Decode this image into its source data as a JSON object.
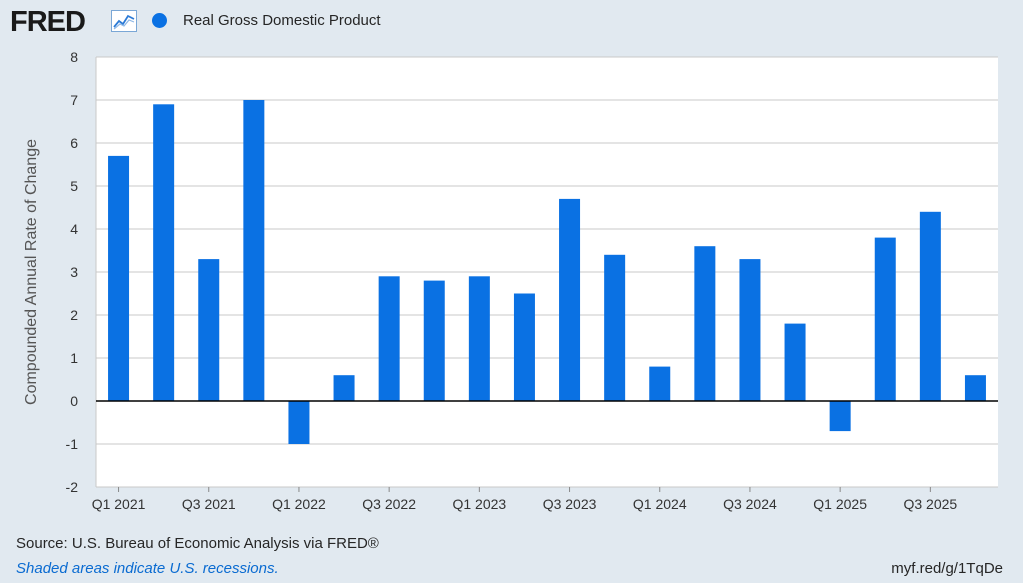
{
  "header": {
    "logo_text": "FRED",
    "logo_icon": "line-chart-icon",
    "legend_label": "Real Gross Domestic Product"
  },
  "colors": {
    "bar": "#0a71e3",
    "plot_bg": "#ffffff",
    "page_bg": "#e1e9f0",
    "grid": "#c9c9c9",
    "zero_line": "#000000"
  },
  "footer": {
    "source": "Source: U.S. Bureau of Economic Analysis via FRED®",
    "note": "Shaded areas indicate U.S. recessions.",
    "shortlink": "myf.red/g/1TqDe"
  },
  "chart_data": {
    "type": "bar",
    "ylabel": "Compounded Annual Rate of Change",
    "ylim": [
      -2,
      8
    ],
    "yticks": [
      -2,
      -1,
      0,
      1,
      2,
      3,
      4,
      5,
      6,
      7,
      8
    ],
    "grid": true,
    "categories": [
      "Q1 2021",
      "Q2 2021",
      "Q3 2021",
      "Q4 2021",
      "Q1 2022",
      "Q2 2022",
      "Q3 2022",
      "Q4 2022",
      "Q1 2023",
      "Q2 2023",
      "Q3 2023",
      "Q4 2023",
      "Q1 2024",
      "Q2 2024",
      "Q3 2024",
      "Q4 2024",
      "Q1 2025",
      "Q2 2025",
      "Q3 2025",
      "Q4 2025"
    ],
    "xtick_labels": [
      "Q1 2021",
      "Q3 2021",
      "Q1 2022",
      "Q3 2022",
      "Q1 2023",
      "Q3 2023",
      "Q1 2024",
      "Q3 2024",
      "Q1 2025",
      "Q3 2025"
    ],
    "series": [
      {
        "name": "Real Gross Domestic Product",
        "values": [
          5.7,
          6.9,
          3.3,
          7.0,
          -1.0,
          0.6,
          2.9,
          2.8,
          2.9,
          2.5,
          4.7,
          3.4,
          0.8,
          3.6,
          3.3,
          1.8,
          -0.7,
          3.8,
          4.4,
          0.6
        ]
      }
    ]
  }
}
